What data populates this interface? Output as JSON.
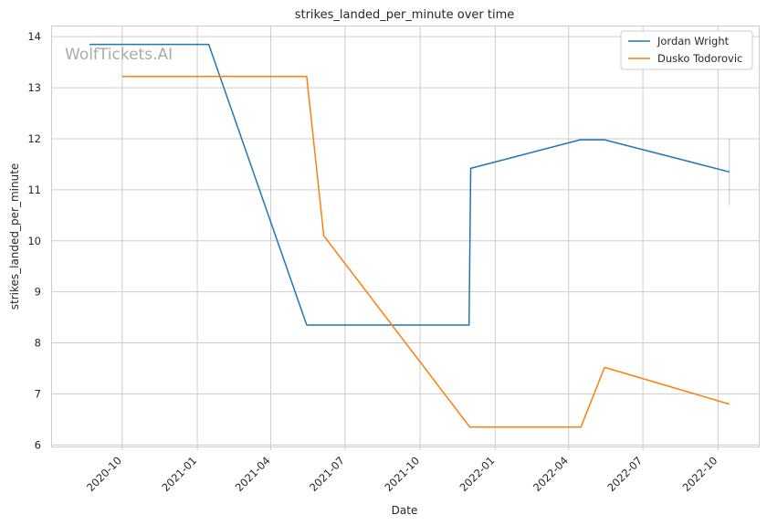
{
  "chart_data": {
    "type": "line",
    "title": "strikes_landed_per_minute over time",
    "xlabel": "Date",
    "ylabel": "strikes_landed_per_minute",
    "watermark": "WolfTickets.AI",
    "grid": true,
    "legend_position": "top-right",
    "ylim": [
      5.97,
      14.2
    ],
    "xlim": [
      "2020-07-07",
      "2022-11-20"
    ],
    "x_ticks": [
      "2020-10",
      "2021-01",
      "2021-04",
      "2021-07",
      "2021-10",
      "2022-01",
      "2022-04",
      "2022-07",
      "2022-10"
    ],
    "y_ticks": [
      6,
      7,
      8,
      9,
      10,
      11,
      12,
      13,
      14
    ],
    "series": [
      {
        "name": "Jordan Wright",
        "color": "#1f77b4",
        "x": [
          "2020-08-22",
          "2021-01-15",
          "2021-05-15",
          "2021-11-30",
          "2021-12-02",
          "2022-04-15",
          "2022-05-15",
          "2022-10-15"
        ],
        "y": [
          13.85,
          13.85,
          8.35,
          8.35,
          11.42,
          11.98,
          11.98,
          11.35
        ]
      },
      {
        "name": "Dusko Todorovic",
        "color": "#ff7f0e",
        "x": [
          "2020-10-01",
          "2021-05-15",
          "2021-06-05",
          "2021-12-01",
          "2022-04-16",
          "2022-05-15",
          "2022-10-15"
        ],
        "y": [
          13.22,
          13.22,
          10.1,
          6.35,
          6.35,
          7.52,
          6.8
        ]
      }
    ],
    "error_bar": {
      "x": "2022-10-15",
      "low": 10.7,
      "high": 12.0,
      "color": "#1f77b4"
    }
  }
}
